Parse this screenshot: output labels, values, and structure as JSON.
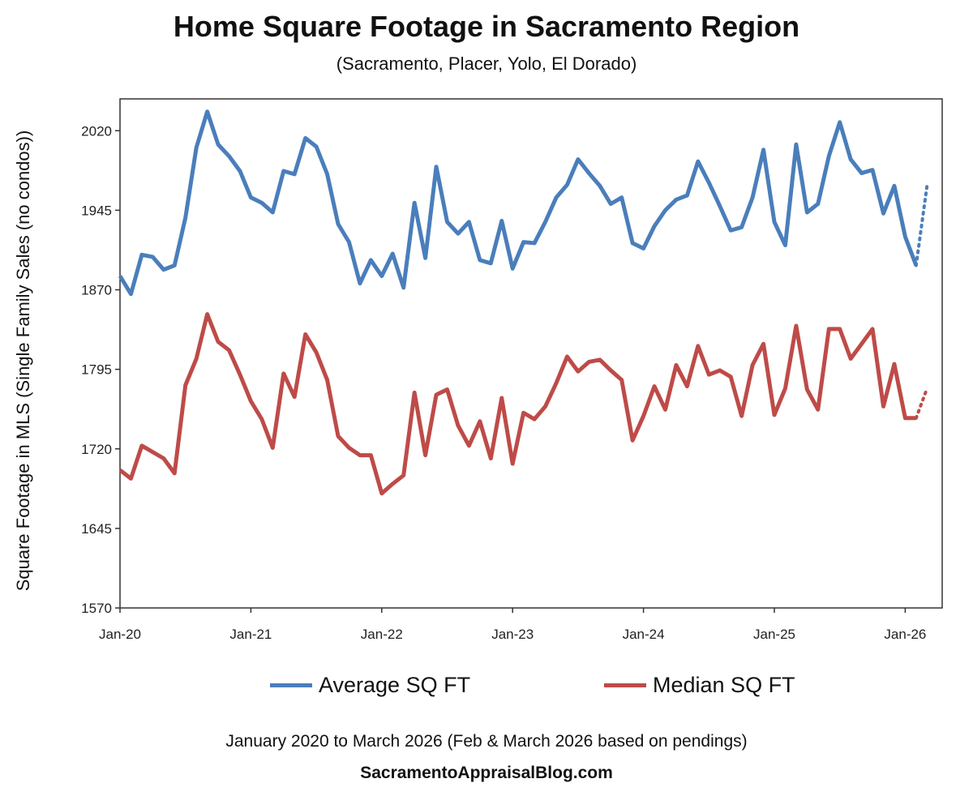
{
  "chart_data": {
    "type": "line",
    "title": "Home Square Footage in Sacramento Region",
    "subtitle": "(Sacramento, Placer, Yolo, El Dorado)",
    "ylabel": "Square Footage in MLS (Single Family Sales (no condos))",
    "xlabel": "",
    "ylim": [
      1570,
      2050
    ],
    "yticks": [
      "1570",
      "1645",
      "1720",
      "1795",
      "1870",
      "1945",
      "2020"
    ],
    "x_start": "Jan-20",
    "x_end": "Mar-26",
    "xticks": [
      "Jan-20",
      "Jan-21",
      "Jan-22",
      "Jan-23",
      "Jan-24",
      "Jan-25",
      "Jan-26"
    ],
    "grid": false,
    "legend_position": "bottom",
    "projected_note": "Last segment dotted (based on pendings)",
    "series": [
      {
        "name": "Average SQ FT",
        "color": "#4A7EBB",
        "values": [
          1883,
          1866,
          1903,
          1901,
          1889,
          1893,
          1938,
          2004,
          2038,
          2007,
          1996,
          1982,
          1957,
          1952,
          1943,
          1982,
          1979,
          2013,
          2005,
          1979,
          1932,
          1915,
          1876,
          1898,
          1883,
          1904,
          1872,
          1952,
          1900,
          1986,
          1934,
          1923,
          1934,
          1898,
          1895,
          1935,
          1890,
          1915,
          1914,
          1934,
          1957,
          1969,
          1993,
          1980,
          1968,
          1951,
          1957,
          1914,
          1909,
          1930,
          1945,
          1955,
          1959,
          1991,
          1971,
          1949,
          1926,
          1929,
          1957,
          2002,
          1934,
          1912,
          2007,
          1943,
          1951,
          1996,
          2028,
          1993,
          1980,
          1983,
          1942,
          1968,
          1920,
          1893,
          1968
        ]
      },
      {
        "name": "Median SQ FT",
        "color": "#BE4B48",
        "values": [
          1700,
          1692,
          1723,
          1717,
          1711,
          1697,
          1780,
          1805,
          1847,
          1821,
          1813,
          1790,
          1765,
          1748,
          1721,
          1791,
          1769,
          1828,
          1811,
          1785,
          1732,
          1721,
          1714,
          1714,
          1678,
          1687,
          1695,
          1773,
          1714,
          1771,
          1776,
          1742,
          1723,
          1746,
          1711,
          1768,
          1706,
          1754,
          1748,
          1760,
          1782,
          1807,
          1793,
          1802,
          1804,
          1794,
          1785,
          1728,
          1751,
          1779,
          1757,
          1799,
          1779,
          1817,
          1790,
          1794,
          1788,
          1751,
          1799,
          1819,
          1752,
          1777,
          1836,
          1776,
          1757,
          1833,
          1833,
          1805,
          1819,
          1833,
          1760,
          1800,
          1749,
          1749,
          1777
        ]
      }
    ]
  },
  "footnote": "January 2020 to March 2026 (Feb & March 2026 based on pendings)",
  "website": "SacramentoAppraisalBlog.com"
}
